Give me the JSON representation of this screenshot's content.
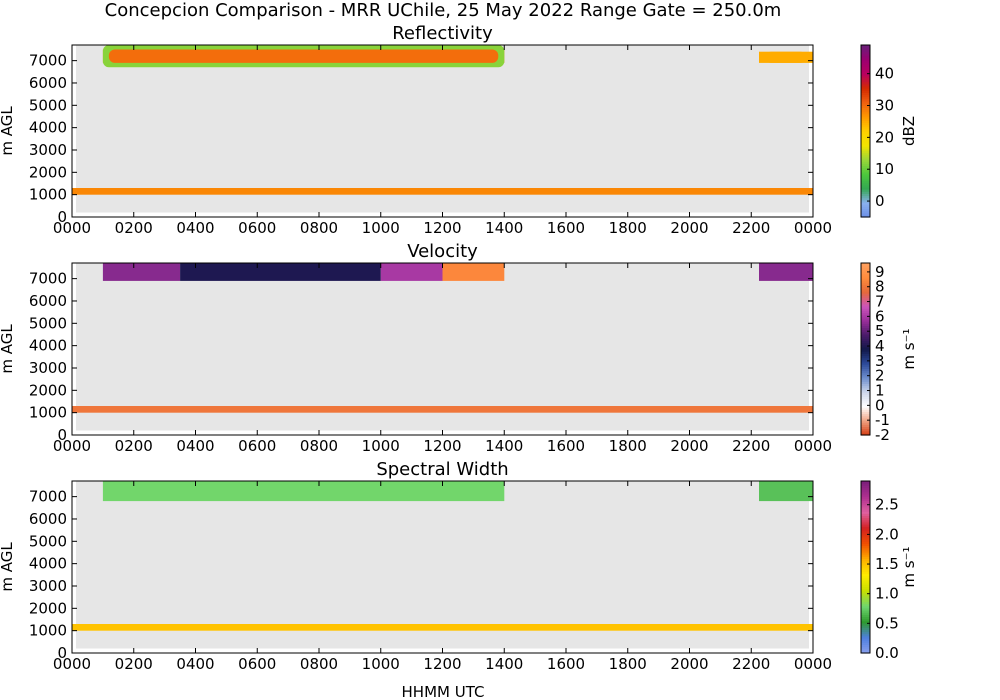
{
  "figure": {
    "suptitle": "Concepcion Comparison - MRR UChile, 25 May 2022 Range Gate = 250.0m",
    "xlabel": "HHMM UTC"
  },
  "colors": {
    "plot_bg": "#e6e6e6"
  },
  "chart_data": [
    {
      "type": "heatmap",
      "title": "Reflectivity",
      "ylabel": "m AGL",
      "colorbar_label": "dBZ",
      "x_ticks": [
        "0000",
        "0200",
        "0400",
        "0600",
        "0800",
        "1000",
        "1200",
        "1400",
        "1600",
        "1800",
        "2000",
        "2200",
        "0000"
      ],
      "y_ticks": [
        "0",
        "1000",
        "2000",
        "3000",
        "4000",
        "5000",
        "6000",
        "7000"
      ],
      "ylim": [
        0,
        7700
      ],
      "colorbar_ticks": [
        "0",
        "10",
        "20",
        "30",
        "40"
      ],
      "colorbar_range": [
        -5,
        49
      ],
      "colormap": [
        "#6b8fe6",
        "#8ab0ef",
        "#34a853",
        "#4cc83c",
        "#9ad63a",
        "#f2e400",
        "#ffd000",
        "#ff9a00",
        "#f06010",
        "#d42a00",
        "#b80060",
        "#9c0070",
        "#6a1f7a"
      ],
      "layers": [
        {
          "label": "upper band (core)",
          "x_range": [
            "0100",
            "1400"
          ],
          "y_range": [
            6900,
            7500
          ],
          "typical_value": 30
        },
        {
          "label": "upper band (edge)",
          "x_range": [
            "0100",
            "1400"
          ],
          "y_range": [
            6700,
            7700
          ],
          "typical_value": 12
        },
        {
          "label": "upper band late (core)",
          "x_range": [
            "2215",
            "2359"
          ],
          "y_range": [
            6900,
            7400
          ],
          "typical_value": 25
        },
        {
          "label": "low band",
          "x_range": [
            "0000",
            "2400"
          ],
          "y_range": [
            1000,
            1300
          ],
          "typical_value": 28
        }
      ]
    },
    {
      "type": "heatmap",
      "title": "Velocity",
      "ylabel": "m AGL",
      "colorbar_label": "m s⁻¹",
      "x_ticks": [
        "0000",
        "0200",
        "0400",
        "0600",
        "0800",
        "1000",
        "1200",
        "1400",
        "1600",
        "1800",
        "2000",
        "2200",
        "0000"
      ],
      "y_ticks": [
        "0",
        "1000",
        "2000",
        "3000",
        "4000",
        "5000",
        "6000",
        "7000"
      ],
      "ylim": [
        0,
        7700
      ],
      "colorbar_ticks": [
        "-2",
        "-1",
        "0",
        "1",
        "2",
        "3",
        "4",
        "5",
        "6",
        "7",
        "8",
        "9"
      ],
      "colorbar_range": [
        -2,
        9.6
      ],
      "colormap": [
        "#d43a10",
        "#f0a080",
        "#ffffff",
        "#cfd8ec",
        "#6f8fce",
        "#2d4a9a",
        "#12184a",
        "#4a1a6a",
        "#9a2f9a",
        "#cc55bb",
        "#e66a3a",
        "#ff8c3c",
        "#ffa060"
      ],
      "layers": [
        {
          "label": "upper band 0100-0330",
          "x_range": [
            "0100",
            "0330"
          ],
          "y_range": [
            6900,
            7700
          ],
          "typical_value": 5.5
        },
        {
          "label": "upper band 0330-1000",
          "x_range": [
            "0330",
            "1000"
          ],
          "y_range": [
            6900,
            7700
          ],
          "typical_value": 4.0
        },
        {
          "label": "upper band 1000-1200",
          "x_range": [
            "1000",
            "1200"
          ],
          "y_range": [
            6900,
            7700
          ],
          "typical_value": 6.0
        },
        {
          "label": "upper band 1200-1400",
          "x_range": [
            "1200",
            "1400"
          ],
          "y_range": [
            6900,
            7700
          ],
          "typical_value": 8.5
        },
        {
          "label": "upper band late",
          "x_range": [
            "2215",
            "2359"
          ],
          "y_range": [
            6900,
            7700
          ],
          "typical_value": 5.5
        },
        {
          "label": "low band",
          "x_range": [
            "0000",
            "2400"
          ],
          "y_range": [
            1000,
            1300
          ],
          "typical_value": 8.0
        }
      ]
    },
    {
      "type": "heatmap",
      "title": "Spectral Width",
      "ylabel": "m AGL",
      "colorbar_label": "m s⁻¹",
      "x_ticks": [
        "0000",
        "0200",
        "0400",
        "0600",
        "0800",
        "1000",
        "1200",
        "1400",
        "1600",
        "1800",
        "2000",
        "2200",
        "0000"
      ],
      "y_ticks": [
        "0",
        "1000",
        "2000",
        "3000",
        "4000",
        "5000",
        "6000",
        "7000"
      ],
      "ylim": [
        0,
        7700
      ],
      "colorbar_ticks": [
        "0.0",
        "0.5",
        "1.0",
        "1.5",
        "2.0",
        "2.5"
      ],
      "colorbar_range": [
        0,
        2.9
      ],
      "colormap": [
        "#8aa0ee",
        "#4f7fe0",
        "#2e9a2e",
        "#6fd66f",
        "#c8e000",
        "#ffee00",
        "#ffb000",
        "#f05000",
        "#d42020",
        "#e060a0",
        "#b03090",
        "#7a1f7a"
      ],
      "layers": [
        {
          "label": "upper band",
          "x_range": [
            "0100",
            "1400"
          ],
          "y_range": [
            6800,
            7700
          ],
          "typical_value": 0.8
        },
        {
          "label": "upper band late",
          "x_range": [
            "2215",
            "2359"
          ],
          "y_range": [
            6800,
            7700
          ],
          "typical_value": 0.7
        },
        {
          "label": "low band",
          "x_range": [
            "0000",
            "2400"
          ],
          "y_range": [
            1000,
            1300
          ],
          "typical_value": 1.5
        }
      ]
    }
  ]
}
